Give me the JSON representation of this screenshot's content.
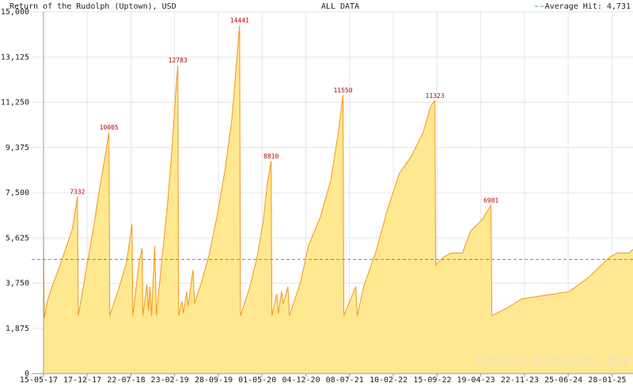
{
  "chart_data": {
    "type": "area",
    "title": "Return of the Rudolph (Uptown), USD",
    "subtitle": "ALL DATA",
    "watermark": "Online-Jackpots.biz",
    "reference_line": {
      "value": 4731,
      "label": "Average Hit: 4,731",
      "color": "#4a9fbf"
    },
    "x": [
      "15-05-17",
      "19-05-17",
      "03-06-17",
      "26-06-17",
      "01-08-17",
      "07-09-17",
      "05-10-17",
      "30-10-17",
      "03-11-17",
      "26-11-17",
      "16-12-17",
      "17-01-18",
      "13-02-18",
      "12-03-18",
      "04-04-18",
      "08-04-18",
      "22-05-18",
      "30-06-18",
      "27-07-18",
      "31-07-18",
      "31-08-18",
      "15-09-18",
      "19-09-18",
      "09-10-18",
      "17-10-18",
      "24-10-18",
      "01-11-18",
      "17-11-18",
      "25-11-18",
      "23-12-18",
      "19-01-19",
      "12-02-19",
      "27-02-19",
      "11-03-19",
      "15-03-19",
      "31-03-19",
      "08-04-19",
      "24-04-19",
      "01-05-19",
      "25-05-19",
      "02-06-19",
      "07-07-19",
      "15-08-19",
      "23-09-19",
      "01-11-19",
      "03-12-19",
      "23-12-19",
      "11-01-20",
      "15-01-20",
      "27-02-20",
      "06-04-20",
      "07-05-20",
      "26-05-20",
      "15-06-20",
      "19-06-20",
      "13-07-20",
      "21-07-20",
      "06-08-20",
      "14-08-20",
      "06-09-20",
      "14-09-20",
      "08-11-20",
      "17-12-20",
      "14-02-21",
      "06-04-21",
      "14-05-21",
      "06-06-21",
      "10-06-21",
      "19-07-21",
      "08-08-21",
      "16-08-21",
      "16-09-21",
      "14-11-21",
      "12-01-22",
      "12-03-22",
      "10-05-22",
      "08-07-22",
      "15-08-22",
      "04-09-22",
      "08-09-22",
      "13-10-22",
      "21-11-22",
      "19-01-23",
      "27-02-23",
      "27-04-23",
      "09-06-23",
      "13-06-23",
      "23-08-23",
      "09-11-23",
      "14-04-24",
      "30-06-24",
      "06-10-24",
      "13-01-25",
      "22-02-25",
      "22-04-25",
      "12-05-25"
    ],
    "series": [
      {
        "color": "#f7941d",
        "fill": "#ffe88f",
        "values": [
          5800,
          2300,
          3000,
          3600,
          4400,
          5300,
          6000,
          7332,
          2400,
          3500,
          4500,
          6000,
          7500,
          8800,
          10005,
          2400,
          3500,
          4600,
          6200,
          2400,
          4600,
          5200,
          2400,
          3700,
          2600,
          3600,
          2400,
          5300,
          2400,
          4800,
          7000,
          9500,
          11500,
          12783,
          2400,
          3000,
          2500,
          3400,
          2800,
          4300,
          2900,
          3800,
          5000,
          6600,
          8500,
          10500,
          12500,
          14441,
          2400,
          3500,
          4800,
          6300,
          7800,
          8810,
          2400,
          3300,
          2500,
          3400,
          2900,
          3600,
          2400,
          3800,
          5300,
          6500,
          8000,
          10000,
          11550,
          2400,
          3200,
          3600,
          2400,
          3600,
          5000,
          6800,
          8300,
          9000,
          10000,
          11100,
          11323,
          4500,
          4800,
          5000,
          5000,
          5900,
          6400,
          6981,
          2400,
          2700,
          3100,
          3300,
          3400,
          4000,
          4800,
          5000,
          5000,
          5150
        ],
        "value_labels": [
          null,
          null,
          null,
          null,
          null,
          null,
          null,
          "7332",
          null,
          null,
          null,
          null,
          null,
          null,
          "10005",
          null,
          null,
          null,
          null,
          null,
          null,
          null,
          null,
          null,
          null,
          null,
          null,
          null,
          null,
          null,
          null,
          null,
          null,
          "12783",
          null,
          null,
          null,
          null,
          null,
          null,
          null,
          null,
          null,
          null,
          null,
          null,
          null,
          "14441",
          null,
          null,
          null,
          null,
          null,
          "8810",
          null,
          null,
          null,
          null,
          null,
          null,
          null,
          null,
          null,
          null,
          null,
          null,
          "11550",
          null,
          null,
          null,
          null,
          null,
          null,
          null,
          null,
          null,
          null,
          null,
          "11323",
          null,
          null,
          null,
          null,
          null,
          null,
          "6981",
          null,
          null,
          null,
          null,
          null,
          null,
          null,
          null,
          null,
          null
        ]
      }
    ],
    "xlim": [
      "15-05-17",
      "12-05-25"
    ],
    "xticks": [
      "15-05-17",
      "17-12-17",
      "22-07-18",
      "23-02-19",
      "28-09-19",
      "01-05-20",
      "04-12-20",
      "08-07-21",
      "10-02-22",
      "15-09-22",
      "19-04-23",
      "22-11-23",
      "25-06-24",
      "28-01-25"
    ],
    "ylim": [
      0,
      15000
    ],
    "yticks": [
      0,
      {
        "value": 1875,
        "label": "1,875"
      },
      {
        "value": 3750,
        "label": "3,750"
      },
      {
        "value": 5625,
        "label": "5,625"
      },
      {
        "value": 7500,
        "label": "7,500"
      },
      {
        "value": 9375,
        "label": "9,375"
      },
      {
        "value": 11250,
        "label": "11,250"
      },
      {
        "value": 13125,
        "label": "13,125"
      },
      {
        "value": 15000,
        "label": "15,000"
      }
    ],
    "grid": true
  }
}
